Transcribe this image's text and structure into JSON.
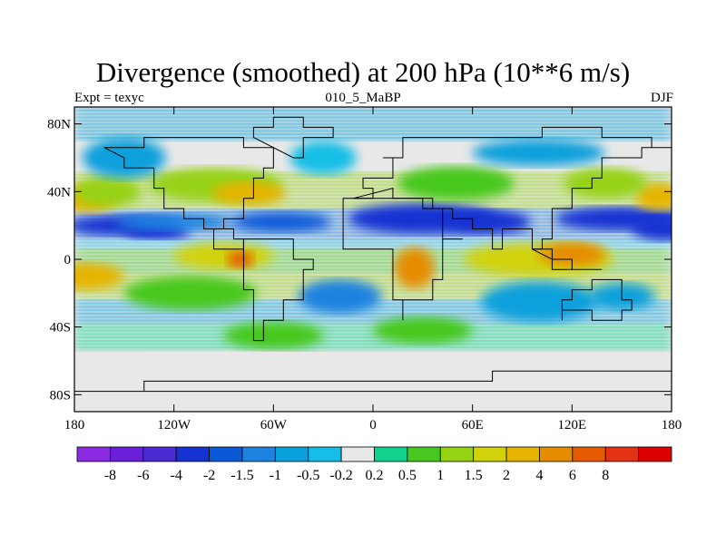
{
  "title": "Divergence (smoothed) at 200 hPa (10**6 m/s)",
  "left_label": "Expt = texyc",
  "center_label": "010_5_MaBP",
  "right_label": "DJF",
  "map": {
    "type": "filled-contour-map",
    "projection": "cylindrical-equidistant",
    "lon_range": [
      -180,
      180
    ],
    "lat_range": [
      -90,
      90
    ],
    "x_ticks": [
      {
        "value": -180,
        "label": "180"
      },
      {
        "value": -120,
        "label": "120W"
      },
      {
        "value": -60,
        "label": "60W"
      },
      {
        "value": 0,
        "label": "0"
      },
      {
        "value": 60,
        "label": "60E"
      },
      {
        "value": 120,
        "label": "120E"
      },
      {
        "value": 180,
        "label": "180"
      }
    ],
    "y_ticks": [
      {
        "value": 80,
        "label": "80N"
      },
      {
        "value": 40,
        "label": "40N"
      },
      {
        "value": 0,
        "label": "0"
      },
      {
        "value": -40,
        "label": "40S"
      },
      {
        "value": -80,
        "label": "80S"
      }
    ],
    "missing_color": "#e8e8e8"
  },
  "colorbar": {
    "colors": [
      "#8a2be2",
      "#6a1fd8",
      "#4b2ad4",
      "#1432d2",
      "#0a5ad8",
      "#1e82e0",
      "#0aa0dc",
      "#14bee6",
      "#e8e8e8",
      "#10d28c",
      "#46c81e",
      "#96d214",
      "#d2d20a",
      "#e6b400",
      "#e68c00",
      "#e65a00",
      "#e63214",
      "#dc0000"
    ],
    "labels": [
      "-8",
      "-6",
      "-4",
      "-2",
      "-1.5",
      "-1",
      "-0.5",
      "-0.2",
      "0.2",
      "0.5",
      "1",
      "1.5",
      "2",
      "4",
      "6",
      "8"
    ]
  },
  "blobs": [
    {
      "cx": -150,
      "cy": 20,
      "rx": 35,
      "ry": 6,
      "v": -2.5
    },
    {
      "cx": -130,
      "cy": 16,
      "rx": 20,
      "ry": 4,
      "v": -4
    },
    {
      "cx": -120,
      "cy": 22,
      "rx": 35,
      "ry": 5,
      "v": -1.5
    },
    {
      "cx": -55,
      "cy": 22,
      "rx": 30,
      "ry": 6,
      "v": -1.8
    },
    {
      "cx": 30,
      "cy": 24,
      "rx": 45,
      "ry": 9,
      "v": -2.5
    },
    {
      "cx": 70,
      "cy": 22,
      "rx": 25,
      "ry": 7,
      "v": -4
    },
    {
      "cx": 150,
      "cy": 24,
      "rx": 40,
      "ry": 7,
      "v": -2.5
    },
    {
      "cx": 178,
      "cy": 18,
      "rx": 22,
      "ry": 7,
      "v": -3
    },
    {
      "cx": -95,
      "cy": 44,
      "rx": 40,
      "ry": 10,
      "v": 1
    },
    {
      "cx": -75,
      "cy": 39,
      "rx": 22,
      "ry": 7,
      "v": 3
    },
    {
      "cx": -172,
      "cy": 36,
      "rx": 18,
      "ry": 8,
      "v": 3
    },
    {
      "cx": -160,
      "cy": 40,
      "rx": 20,
      "ry": 9,
      "v": 1.2
    },
    {
      "cx": 172,
      "cy": 37,
      "rx": 14,
      "ry": 8,
      "v": 2.5
    },
    {
      "cx": 140,
      "cy": 45,
      "rx": 25,
      "ry": 9,
      "v": 1
    },
    {
      "cx": 50,
      "cy": 45,
      "rx": 35,
      "ry": 10,
      "v": 0.7
    },
    {
      "cx": -150,
      "cy": 60,
      "rx": 25,
      "ry": 12,
      "v": -0.7
    },
    {
      "cx": -30,
      "cy": 60,
      "rx": 20,
      "ry": 10,
      "v": -0.4
    },
    {
      "cx": 100,
      "cy": 63,
      "rx": 40,
      "ry": 8,
      "v": -0.7
    },
    {
      "cx": -90,
      "cy": 2,
      "rx": 30,
      "ry": 8,
      "v": 1.5
    },
    {
      "cx": -80,
      "cy": 0,
      "rx": 8,
      "ry": 5,
      "v": 6
    },
    {
      "cx": 25,
      "cy": -5,
      "rx": 12,
      "ry": 12,
      "v": 4
    },
    {
      "cx": 100,
      "cy": 0,
      "rx": 45,
      "ry": 10,
      "v": 1.5
    },
    {
      "cx": 120,
      "cy": 3,
      "rx": 20,
      "ry": 7,
      "v": 4
    },
    {
      "cx": -175,
      "cy": -10,
      "rx": 25,
      "ry": 8,
      "v": 2.5
    },
    {
      "cx": -110,
      "cy": -20,
      "rx": 40,
      "ry": 10,
      "v": 0.6
    },
    {
      "cx": -20,
      "cy": -22,
      "rx": 25,
      "ry": 10,
      "v": -1.5
    },
    {
      "cx": 100,
      "cy": -25,
      "rx": 35,
      "ry": 12,
      "v": -0.7
    },
    {
      "cx": 150,
      "cy": -22,
      "rx": 20,
      "ry": 8,
      "v": -1
    },
    {
      "cx": -60,
      "cy": -45,
      "rx": 30,
      "ry": 8,
      "v": 0.6
    },
    {
      "cx": 30,
      "cy": -42,
      "rx": 30,
      "ry": 8,
      "v": 0.8
    },
    {
      "cx": -100,
      "cy": -60,
      "rx": 60,
      "ry": 5,
      "v": 0.15
    },
    {
      "cx": 0,
      "cy": -82,
      "rx": 180,
      "ry": 7,
      "v": 0
    }
  ]
}
